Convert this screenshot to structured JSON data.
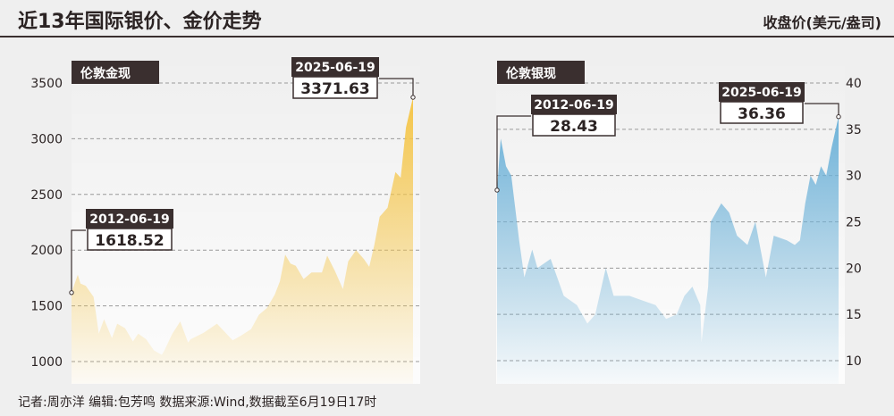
{
  "title": "近13年国际银价、金价走势",
  "unit": "收盘价(美元/盎司)",
  "footer": "记者:周亦洋   编辑:包芳鸣   数据来源:Wind,数据截至6月19日17时",
  "colors": {
    "gold": "#f5c64a",
    "silver": "#6fb3d9",
    "tag_bg": "#3a2f2f",
    "grid": "#9a9a9a"
  },
  "chart_data": [
    {
      "type": "area",
      "name": "伦敦金现",
      "axis": "left",
      "ylim": [
        900,
        3550
      ],
      "yticks": [
        1000,
        1500,
        2000,
        2500,
        3000,
        3500
      ],
      "x": [
        2012.46,
        2012.7,
        2012.8,
        2013.0,
        2013.3,
        2013.5,
        2013.7,
        2014.0,
        2014.2,
        2014.5,
        2014.8,
        2015.0,
        2015.3,
        2015.6,
        2015.9,
        2016.0,
        2016.3,
        2016.6,
        2016.9,
        2017.0,
        2017.5,
        2018.0,
        2018.6,
        2018.9,
        2019.3,
        2019.6,
        2019.9,
        2020.2,
        2020.4,
        2020.6,
        2020.8,
        2021.0,
        2021.3,
        2021.6,
        2022.0,
        2022.2,
        2022.5,
        2022.8,
        2023.0,
        2023.3,
        2023.6,
        2023.8,
        2024.0,
        2024.2,
        2024.5,
        2024.8,
        2025.0,
        2025.2,
        2025.47
      ],
      "values": [
        1618.52,
        1780,
        1700,
        1680,
        1580,
        1250,
        1380,
        1210,
        1340,
        1300,
        1180,
        1250,
        1200,
        1100,
        1060,
        1100,
        1250,
        1360,
        1170,
        1200,
        1260,
        1340,
        1190,
        1230,
        1290,
        1420,
        1480,
        1600,
        1720,
        1960,
        1880,
        1860,
        1740,
        1800,
        1800,
        1950,
        1810,
        1650,
        1900,
        2000,
        1920,
        1850,
        2050,
        2300,
        2380,
        2700,
        2650,
        3100,
        3371.63
      ],
      "annotations": [
        {
          "date": "2012-06-19",
          "value": "1618.52"
        },
        {
          "date": "2025-06-19",
          "value": "3371.63"
        }
      ]
    },
    {
      "type": "area",
      "name": "伦敦银现",
      "axis": "right",
      "ylim": [
        9,
        40.8
      ],
      "yticks": [
        10,
        15,
        20,
        25,
        30,
        35,
        40
      ],
      "x": [
        2012.46,
        2012.6,
        2012.8,
        2013.0,
        2013.3,
        2013.5,
        2013.8,
        2014.0,
        2014.5,
        2015.0,
        2015.5,
        2015.9,
        2016.2,
        2016.6,
        2016.9,
        2017.5,
        2018.0,
        2018.5,
        2018.9,
        2019.3,
        2019.6,
        2019.9,
        2020.2,
        2020.25,
        2020.5,
        2020.6,
        2020.8,
        2021.0,
        2021.3,
        2021.6,
        2022.0,
        2022.3,
        2022.7,
        2023.0,
        2023.5,
        2023.8,
        2024.0,
        2024.2,
        2024.4,
        2024.6,
        2024.8,
        2025.0,
        2025.2,
        2025.47
      ],
      "values": [
        28.43,
        34,
        31,
        30,
        23,
        19,
        22,
        20,
        21,
        17,
        16,
        14,
        15,
        20,
        17,
        17,
        16.5,
        16,
        14.5,
        15,
        17,
        18,
        16,
        12,
        18,
        25,
        26,
        27,
        26,
        23.5,
        22.5,
        25,
        19,
        23.5,
        23,
        22.5,
        23,
        27,
        30,
        29,
        31,
        30,
        33,
        36.36
      ],
      "annotations": [
        {
          "date": "2012-06-19",
          "value": "28.43"
        },
        {
          "date": "2025-06-19",
          "value": "36.36"
        }
      ]
    }
  ]
}
